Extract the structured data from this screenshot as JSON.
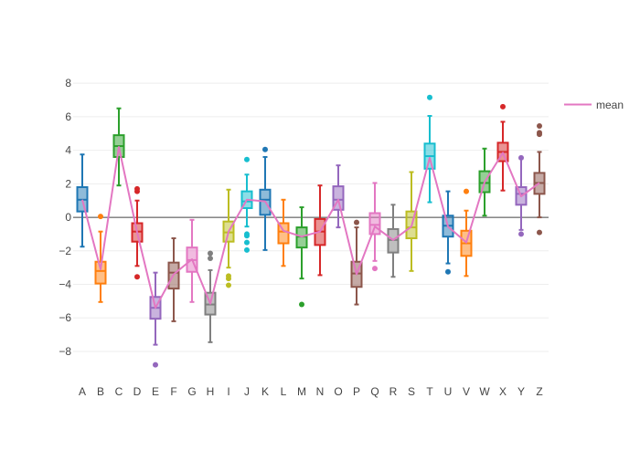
{
  "chart_data": {
    "type": "box",
    "title": "",
    "xlabel": "",
    "ylabel": "",
    "categories": [
      "A",
      "B",
      "C",
      "D",
      "E",
      "F",
      "G",
      "H",
      "I",
      "J",
      "K",
      "L",
      "M",
      "N",
      "O",
      "P",
      "Q",
      "R",
      "S",
      "T",
      "U",
      "V",
      "W",
      "X",
      "Y",
      "Z"
    ],
    "ylim": [
      -9.2,
      8.5
    ],
    "yticks": [
      -8,
      -6,
      -4,
      -2,
      0,
      2,
      4,
      6,
      8
    ],
    "ytick_labels": [
      "−8",
      "−6",
      "−4",
      "−2",
      "0",
      "2",
      "4",
      "6",
      "8"
    ],
    "grid": true,
    "zeroline": true,
    "legend": {
      "position": "top-right",
      "entries": [
        "mean"
      ]
    },
    "boxes": [
      {
        "name": "A",
        "color": "#1f77b4",
        "lowerfence": -1.75,
        "q1": 0.35,
        "median": 1.05,
        "q3": 1.8,
        "upperfence": 3.75,
        "outliers": []
      },
      {
        "name": "B",
        "color": "#ff7f0e",
        "lowerfence": -5.05,
        "q1": -3.95,
        "median": -3.2,
        "q3": -2.65,
        "upperfence": -0.85,
        "outliers": [
          0.05
        ]
      },
      {
        "name": "C",
        "color": "#2ca02c",
        "lowerfence": 1.9,
        "q1": 3.6,
        "median": 4.25,
        "q3": 4.9,
        "upperfence": 6.5,
        "outliers": []
      },
      {
        "name": "D",
        "color": "#d62728",
        "lowerfence": -2.9,
        "q1": -1.45,
        "median": -0.85,
        "q3": -0.35,
        "upperfence": 1.0,
        "outliers": [
          -3.55,
          1.55,
          1.7
        ]
      },
      {
        "name": "E",
        "color": "#9467bd",
        "lowerfence": -7.6,
        "q1": -6.05,
        "median": -5.4,
        "q3": -4.75,
        "upperfence": -3.3,
        "outliers": [
          -8.8
        ]
      },
      {
        "name": "F",
        "color": "#8c564b",
        "lowerfence": -6.2,
        "q1": -4.25,
        "median": -3.3,
        "q3": -2.7,
        "upperfence": -1.25,
        "outliers": []
      },
      {
        "name": "G",
        "color": "#e377c2",
        "lowerfence": -5.05,
        "q1": -3.25,
        "median": -2.55,
        "q3": -1.8,
        "upperfence": -0.15,
        "outliers": []
      },
      {
        "name": "H",
        "color": "#7f7f7f",
        "lowerfence": -7.45,
        "q1": -5.8,
        "median": -5.2,
        "q3": -4.5,
        "upperfence": -3.15,
        "outliers": [
          -2.45,
          -2.15
        ]
      },
      {
        "name": "I",
        "color": "#bcbd22",
        "lowerfence": -3.0,
        "q1": -1.45,
        "median": -0.9,
        "q3": -0.25,
        "upperfence": 1.65,
        "outliers": [
          -4.05,
          -3.65,
          -3.5
        ]
      },
      {
        "name": "J",
        "color": "#17becf",
        "lowerfence": -0.55,
        "q1": 0.55,
        "median": 0.95,
        "q3": 1.55,
        "upperfence": 2.55,
        "outliers": [
          -1.95,
          -1.5,
          -1.1,
          -1.0,
          3.45
        ]
      },
      {
        "name": "K",
        "color": "#1f77b4",
        "lowerfence": -1.95,
        "q1": 0.15,
        "median": 1.05,
        "q3": 1.65,
        "upperfence": 3.6,
        "outliers": [
          4.05
        ]
      },
      {
        "name": "L",
        "color": "#ff7f0e",
        "lowerfence": -2.9,
        "q1": -1.55,
        "median": -0.85,
        "q3": -0.35,
        "upperfence": 1.05,
        "outliers": []
      },
      {
        "name": "M",
        "color": "#2ca02c",
        "lowerfence": -3.65,
        "q1": -1.8,
        "median": -1.15,
        "q3": -0.6,
        "upperfence": 0.6,
        "outliers": [
          -5.2
        ]
      },
      {
        "name": "N",
        "color": "#d62728",
        "lowerfence": -3.45,
        "q1": -1.65,
        "median": -0.85,
        "q3": -0.1,
        "upperfence": 1.9,
        "outliers": []
      },
      {
        "name": "O",
        "color": "#9467bd",
        "lowerfence": -0.6,
        "q1": 0.45,
        "median": 1.05,
        "q3": 1.85,
        "upperfence": 3.1,
        "outliers": []
      },
      {
        "name": "P",
        "color": "#8c564b",
        "lowerfence": -5.2,
        "q1": -4.15,
        "median": -3.35,
        "q3": -2.65,
        "upperfence": -0.6,
        "outliers": [
          -0.3
        ]
      },
      {
        "name": "Q",
        "color": "#e377c2",
        "lowerfence": -2.6,
        "q1": -1.0,
        "median": -0.45,
        "q3": 0.25,
        "upperfence": 2.05,
        "outliers": [
          -3.05
        ]
      },
      {
        "name": "R",
        "color": "#7f7f7f",
        "lowerfence": -3.55,
        "q1": -2.1,
        "median": -1.35,
        "q3": -0.7,
        "upperfence": 0.75,
        "outliers": []
      },
      {
        "name": "S",
        "color": "#bcbd22",
        "lowerfence": -3.2,
        "q1": -1.25,
        "median": -0.6,
        "q3": 0.35,
        "upperfence": 2.7,
        "outliers": []
      },
      {
        "name": "T",
        "color": "#17becf",
        "lowerfence": 0.9,
        "q1": 2.9,
        "median": 3.65,
        "q3": 4.4,
        "upperfence": 6.05,
        "outliers": [
          7.15
        ]
      },
      {
        "name": "U",
        "color": "#1f77b4",
        "lowerfence": -2.75,
        "q1": -1.15,
        "median": -0.5,
        "q3": 0.1,
        "upperfence": 1.55,
        "outliers": [
          -3.25
        ]
      },
      {
        "name": "V",
        "color": "#ff7f0e",
        "lowerfence": -3.5,
        "q1": -2.3,
        "median": -1.55,
        "q3": -0.8,
        "upperfence": 0.4,
        "outliers": [
          1.55
        ]
      },
      {
        "name": "W",
        "color": "#2ca02c",
        "lowerfence": 0.1,
        "q1": 1.5,
        "median": 2.05,
        "q3": 2.75,
        "upperfence": 4.1,
        "outliers": []
      },
      {
        "name": "X",
        "color": "#d62728",
        "lowerfence": 1.6,
        "q1": 3.35,
        "median": 3.9,
        "q3": 4.45,
        "upperfence": 5.7,
        "outliers": [
          6.6
        ]
      },
      {
        "name": "Y",
        "color": "#9467bd",
        "lowerfence": -0.75,
        "q1": 0.75,
        "median": 1.4,
        "q3": 1.8,
        "upperfence": 3.5,
        "outliers": [
          -1.0,
          3.55
        ]
      },
      {
        "name": "Z",
        "color": "#8c564b",
        "lowerfence": 0.0,
        "q1": 1.4,
        "median": 2.05,
        "q3": 2.65,
        "upperfence": 3.9,
        "outliers": [
          -0.9,
          4.95,
          5.05,
          5.45
        ]
      }
    ],
    "mean_series": {
      "name": "mean",
      "color": "#e377c2",
      "values": [
        1.05,
        -3.1,
        4.2,
        -0.9,
        -5.4,
        -3.4,
        -2.5,
        -5.15,
        -0.85,
        1.05,
        0.95,
        -0.8,
        -1.15,
        -0.85,
        1.05,
        -3.4,
        -0.55,
        -1.35,
        -0.55,
        3.55,
        -0.55,
        -1.5,
        2.1,
        3.85,
        1.25,
        2.05
      ]
    }
  }
}
